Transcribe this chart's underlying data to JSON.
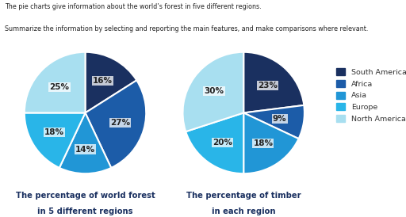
{
  "title_line1": "The pie charts give information about the world’s forest in five different regions.",
  "title_line2": "Summarize the information by selecting and reporting the main features, and make comparisons where relevant.",
  "chart1_title_line1": "The percentage of world forest",
  "chart1_title_line2": "in 5 different regions",
  "chart2_title_line1": "The percentage of timber",
  "chart2_title_line2": "in each region",
  "regions": [
    "South America",
    "Africa",
    "Asia",
    "Europe",
    "North America"
  ],
  "colors": [
    "#1a3060",
    "#1c5ca8",
    "#2196d6",
    "#29b5e8",
    "#a8dff0"
  ],
  "chart1_values": [
    16,
    27,
    14,
    18,
    25
  ],
  "chart2_values": [
    23,
    9,
    18,
    20,
    30
  ],
  "chart1_labels": [
    "16%",
    "27%",
    "14%",
    "18%",
    "25%"
  ],
  "chart2_labels": [
    "23%",
    "9%",
    "18%",
    "20%",
    "30%"
  ],
  "background_color": "#ffffff",
  "text_color": "#333333"
}
